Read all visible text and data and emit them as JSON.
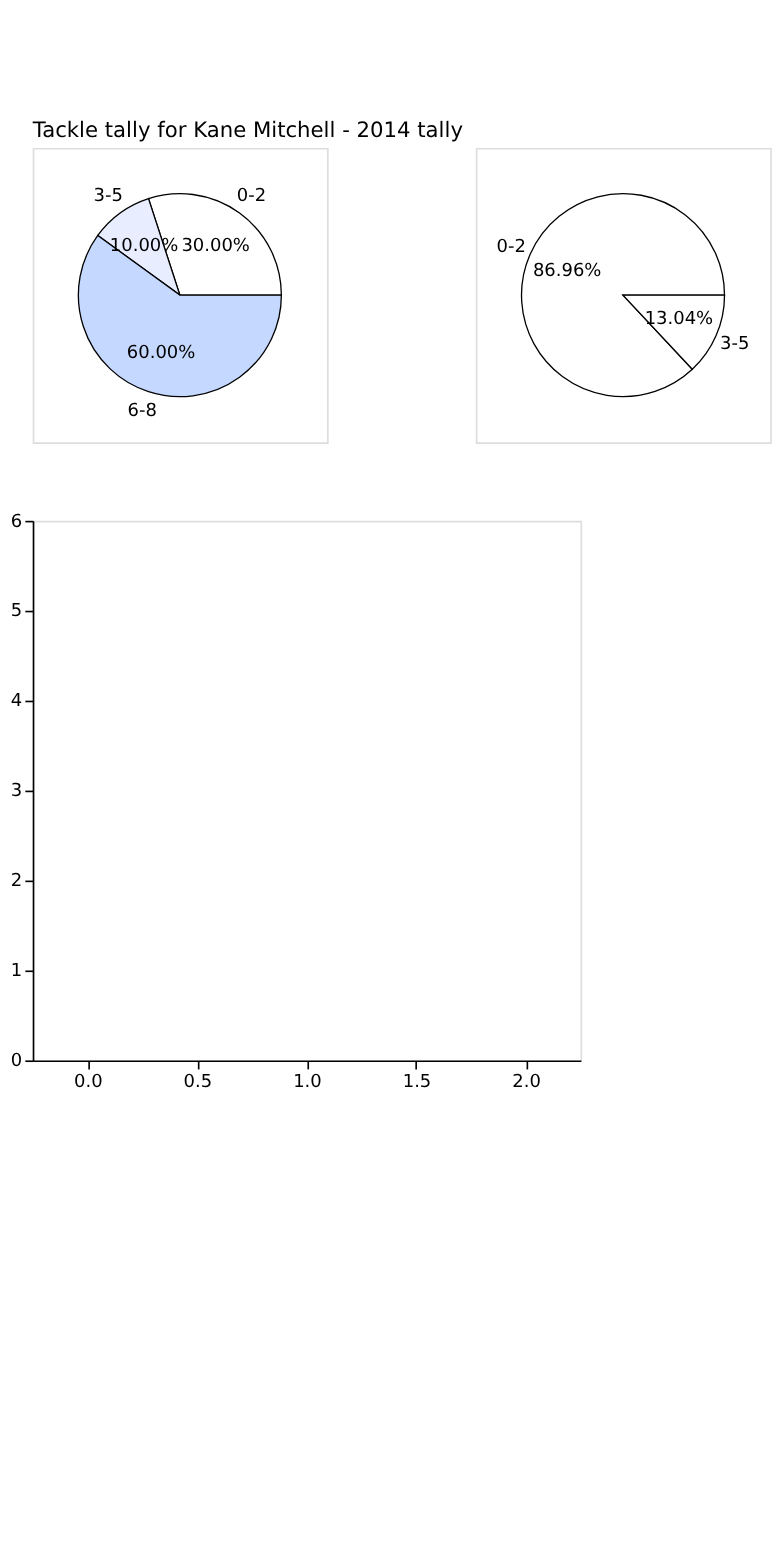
{
  "chart_data": [
    {
      "type": "pie",
      "title": "Tackle tally for Kane Mitchell - 2014 tally",
      "categories": [
        "0-2",
        "3-5",
        "6-8"
      ],
      "values": [
        30,
        10,
        60
      ],
      "colors": [
        "#ffffff",
        "#e8eeff",
        "#c5d8ff"
      ],
      "value_labels": [
        "30.00%",
        "10.00%",
        "60.00%"
      ]
    },
    {
      "type": "pie",
      "categories": [
        "0-2",
        "3-5"
      ],
      "values": [
        86.96,
        13.04
      ],
      "colors": [
        "#ffffff",
        "#ffffff"
      ],
      "value_labels": [
        "86.96%",
        "13.04%"
      ]
    },
    {
      "type": "scatter",
      "xlim": [
        -0.25,
        2.25
      ],
      "ylim": [
        0,
        6
      ],
      "xticks": [
        {
          "value": 0,
          "label": "0.0"
        },
        {
          "value": 0.5,
          "label": "0.5"
        },
        {
          "value": 1,
          "label": "1.0"
        },
        {
          "value": 1.5,
          "label": "1.5"
        },
        {
          "value": 2,
          "label": "2.0"
        }
      ],
      "yticks": [
        0,
        1,
        2,
        3,
        4,
        5,
        6
      ]
    }
  ]
}
